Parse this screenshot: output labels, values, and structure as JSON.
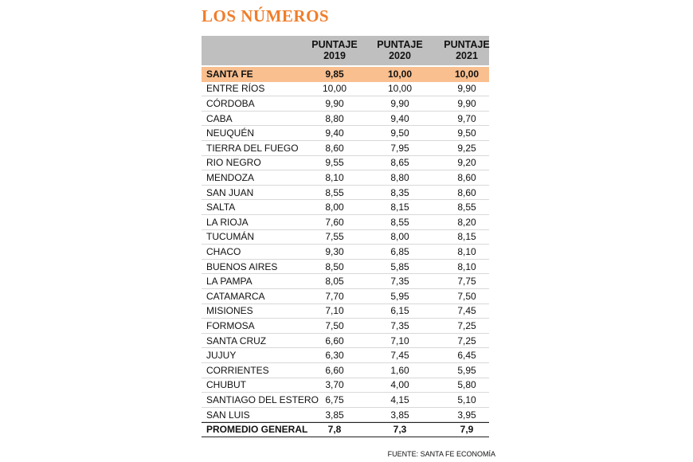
{
  "title": "LOS NÚMEROS",
  "table": {
    "headers": [
      {
        "label": "PUNTAJE",
        "year": "2019"
      },
      {
        "label": "PUNTAJE",
        "year": "2020"
      },
      {
        "label": "PUNTAJE",
        "year": "2021"
      }
    ],
    "rows": [
      [
        "SANTA FE",
        "9,85",
        "10,00",
        "10,00"
      ],
      [
        "ENTRE RÍOS",
        "10,00",
        "10,00",
        "9,90"
      ],
      [
        "CÓRDOBA",
        "9,90",
        "9,90",
        "9,90"
      ],
      [
        "CABA",
        "8,80",
        "9,40",
        "9,70"
      ],
      [
        "NEUQUÉN",
        "9,40",
        "9,50",
        "9,50"
      ],
      [
        "TIERRA DEL FUEGO",
        "8,60",
        "7,95",
        "9,25"
      ],
      [
        "RIO NEGRO",
        "9,55",
        "8,65",
        "9,20"
      ],
      [
        "MENDOZA",
        "8,10",
        "8,80",
        "8,60"
      ],
      [
        "SAN JUAN",
        "8,55",
        "8,35",
        "8,60"
      ],
      [
        "SALTA",
        "8,00",
        "8,15",
        "8,55"
      ],
      [
        "LA RIOJA",
        "7,60",
        "8,55",
        "8,20"
      ],
      [
        "TUCUMÁN",
        "7,55",
        "8,00",
        "8,15"
      ],
      [
        "CHACO",
        "9,30",
        "6,85",
        "8,10"
      ],
      [
        "BUENOS AIRES",
        "8,50",
        "5,85",
        "8,10"
      ],
      [
        "LA PAMPA",
        "8,05",
        "7,35",
        "7,75"
      ],
      [
        "CATAMARCA",
        "7,70",
        "5,95",
        "7,50"
      ],
      [
        "MISIONES",
        "7,10",
        "6,15",
        "7,45"
      ],
      [
        "FORMOSA",
        "7,50",
        "7,35",
        "7,25"
      ],
      [
        "SANTA CRUZ",
        "6,60",
        "7,10",
        "7,25"
      ],
      [
        "JUJUY",
        "6,30",
        "7,45",
        "6,45"
      ],
      [
        "CORRIENTES",
        "6,60",
        "1,60",
        "5,95"
      ],
      [
        "CHUBUT",
        "3,70",
        "4,00",
        "5,80"
      ],
      [
        "SANTIAGO DEL ESTERO",
        "6,75",
        "4,15",
        "5,10"
      ],
      [
        "SAN LUIS",
        "3,85",
        "3,85",
        "3,95"
      ]
    ],
    "footer": [
      "PROMEDIO GENERAL",
      "7,8",
      "7,3",
      "7,9"
    ]
  },
  "source": "FUENTE: SANTA FE ECONOMÍA"
}
